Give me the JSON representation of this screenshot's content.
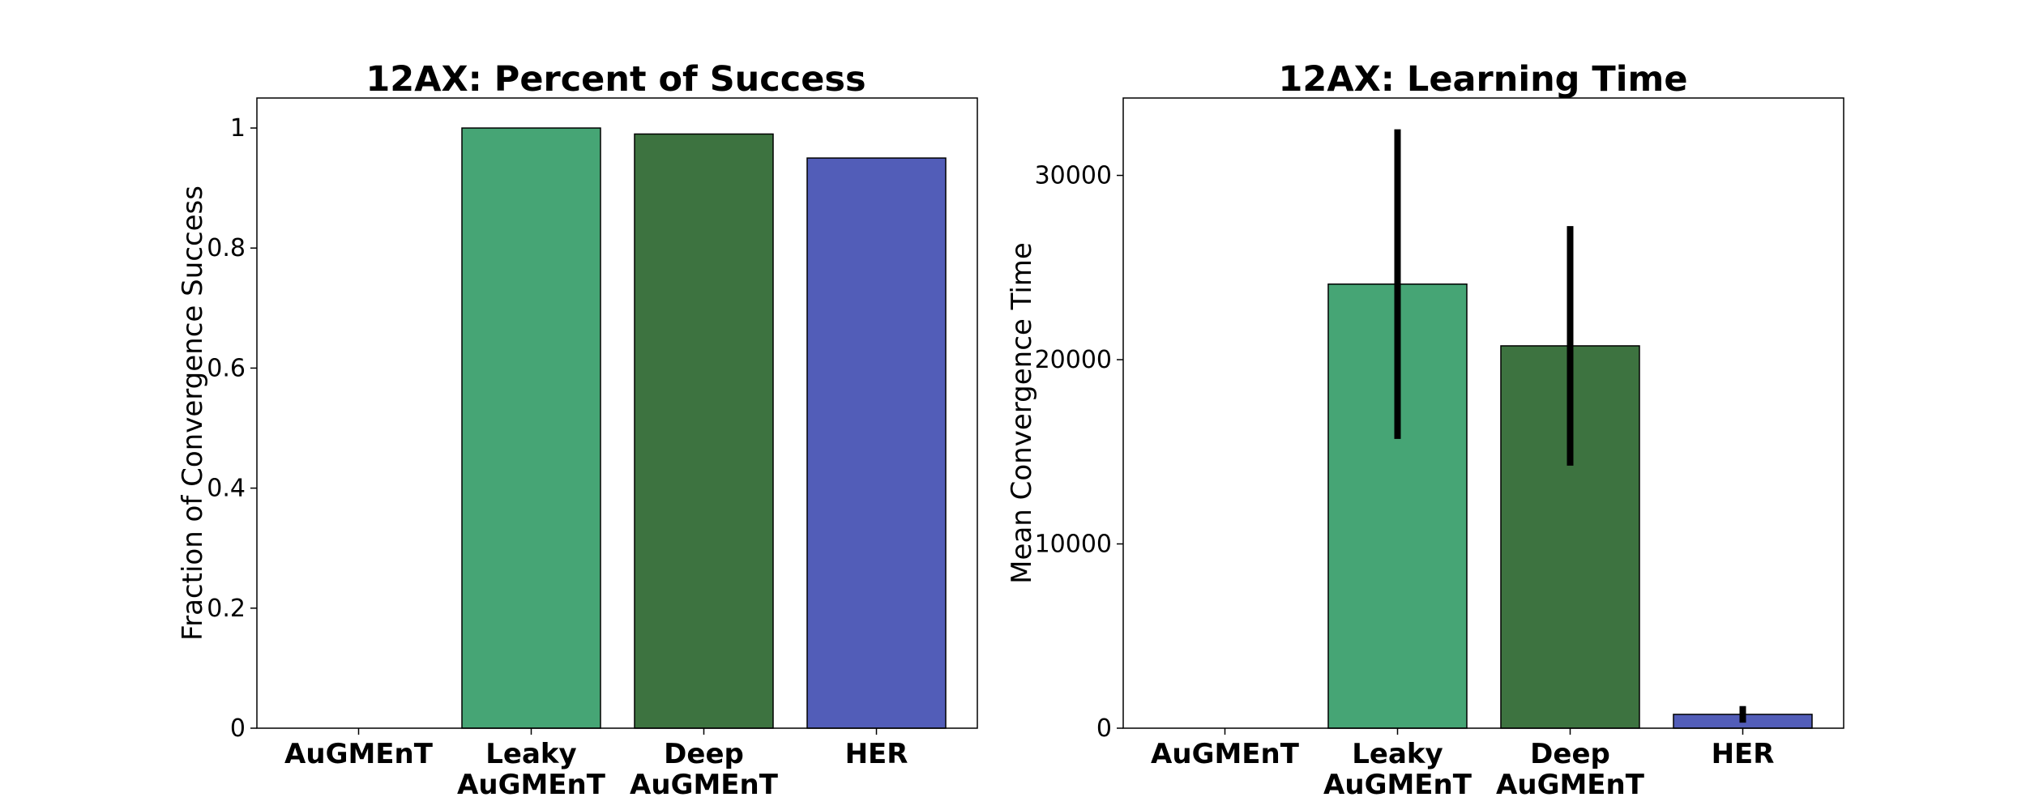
{
  "chart_data": [
    {
      "type": "bar",
      "title": "12AX: Percent of Success",
      "xlabel": "",
      "ylabel": "Fraction of Convergence Success",
      "categories": [
        "AuGMEnT",
        "Leaky\nAuGMEnT",
        "Deep\nAuGMEnT",
        "HER"
      ],
      "values": [
        0,
        1.0,
        0.99,
        0.95
      ],
      "colors": [
        "#46a575",
        "#46a575",
        "#3d7340",
        "#525db8"
      ],
      "ylim": [
        0,
        1.05
      ],
      "yticks": [
        0,
        0.2,
        0.4,
        0.6,
        0.8,
        1
      ],
      "ytick_labels": [
        "0",
        "0.2",
        "0.4",
        "0.6",
        "0.8",
        "1"
      ],
      "grid": false,
      "legend": "none"
    },
    {
      "type": "bar",
      "title": "12AX: Learning Time",
      "xlabel": "",
      "ylabel": "Mean Convergence Time",
      "categories": [
        "AuGMEnT",
        "Leaky\nAuGMEnT",
        "Deep\nAuGMEnT",
        "HER"
      ],
      "values": [
        0,
        24100,
        20750,
        750
      ],
      "errors": [
        0,
        8400,
        6500,
        450
      ],
      "colors": [
        "#46a575",
        "#46a575",
        "#3d7340",
        "#525db8"
      ],
      "ylim": [
        0,
        34200
      ],
      "yticks": [
        0,
        10000,
        20000,
        30000
      ],
      "ytick_labels": [
        "0",
        "10000",
        "20000",
        "30000"
      ],
      "grid": false,
      "legend": "none"
    }
  ]
}
